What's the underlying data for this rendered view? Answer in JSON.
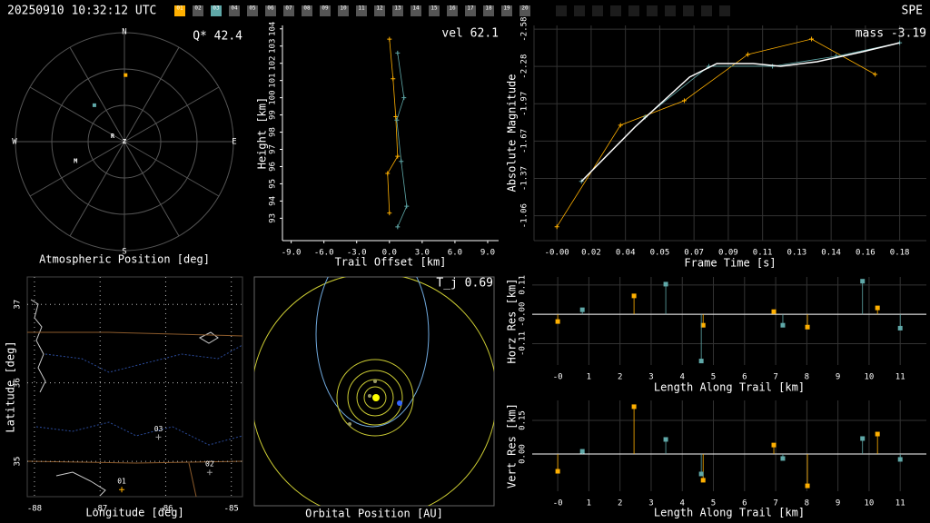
{
  "header": {
    "timestamp": "20250910 10:32:12 UTC",
    "network": "SPE",
    "stations": [
      {
        "label": "01",
        "color": "#ffb000"
      },
      {
        "label": "02",
        "color": "#555555"
      },
      {
        "label": "03",
        "color": "#5fa8a8"
      },
      {
        "label": "04",
        "color": "#555555"
      },
      {
        "label": "05",
        "color": "#555555"
      },
      {
        "label": "06",
        "color": "#555555"
      },
      {
        "label": "07",
        "color": "#555555"
      },
      {
        "label": "08",
        "color": "#555555"
      },
      {
        "label": "09",
        "color": "#555555"
      },
      {
        "label": "10",
        "color": "#555555"
      },
      {
        "label": "11",
        "color": "#555555"
      },
      {
        "label": "12",
        "color": "#555555"
      },
      {
        "label": "13",
        "color": "#555555"
      },
      {
        "label": "14",
        "color": "#555555"
      },
      {
        "label": "15",
        "color": "#555555"
      },
      {
        "label": "16",
        "color": "#555555"
      },
      {
        "label": "17",
        "color": "#555555"
      },
      {
        "label": "18",
        "color": "#555555"
      },
      {
        "label": "19",
        "color": "#555555"
      },
      {
        "label": "20",
        "color": "#555555"
      }
    ]
  },
  "chart_data": [
    {
      "type": "polar",
      "title": "Atmospheric Position [deg]",
      "annotation": "Q* 42.4",
      "directions": [
        "N",
        "E",
        "S",
        "W"
      ],
      "markers": [
        {
          "label": "R",
          "az": 295,
          "zen": 10.8
        },
        {
          "label": "M",
          "az": 248,
          "zen": 43.5
        },
        {
          "label": "Z",
          "az": 0,
          "zen": 0
        }
      ],
      "series": [
        {
          "color": "#ffb000",
          "az": [
            1
          ],
          "zen": [
            55
          ]
        },
        {
          "color": "#5fa8a8",
          "az": [
            320.5
          ],
          "zen": [
            39
          ]
        }
      ]
    },
    {
      "type": "line",
      "xlabel": "Trail Offset [km]",
      "ylabel": "Height [km]",
      "annotation": "vel 62.1",
      "grid": false,
      "xlim": [
        -9.8,
        10
      ],
      "ylim": [
        91.7,
        104.2
      ],
      "xticks": [
        {
          "value": -9,
          "label": "-9.0"
        },
        {
          "value": -6,
          "label": "-6.0"
        },
        {
          "value": -3,
          "label": "-3.0"
        },
        {
          "value": 0,
          "label": "0.0"
        },
        {
          "value": 3,
          "label": "3.0"
        },
        {
          "value": 6,
          "label": "6.0"
        },
        {
          "value": 9,
          "label": "9.0"
        }
      ],
      "yticks": [
        93,
        94,
        95,
        96,
        97,
        98,
        99,
        100,
        101,
        102,
        103,
        104
      ],
      "series": [
        {
          "color": "#ffb000",
          "marker": "+",
          "x": [
            0,
            0.33,
            0.58,
            0.75,
            -0.17,
            0
          ],
          "values": [
            103.4,
            101.1,
            98.9,
            96.6,
            95.6,
            93.3
          ]
        },
        {
          "color": "#5fa8a8",
          "marker": "+",
          "x": [
            0.75,
            1.33,
            0.67,
            1.08,
            1.58,
            0.75
          ],
          "values": [
            102.6,
            100.0,
            98.7,
            96.3,
            93.7,
            92.5
          ]
        }
      ]
    },
    {
      "type": "line",
      "xlabel": "Frame Time [s]",
      "ylabel": "Absolute Magnitude",
      "annotation": "mass -3.19",
      "grid": true,
      "xlim": [
        -0.012,
        0.194
      ],
      "ylim": [
        -0.86,
        -2.61
      ],
      "xticks": [
        {
          "value": 0,
          "label": "-0.00"
        },
        {
          "value": 0.018,
          "label": "0.02"
        },
        {
          "value": 0.036,
          "label": "0.04"
        },
        {
          "value": 0.054,
          "label": "0.05"
        },
        {
          "value": 0.072,
          "label": "0.07"
        },
        {
          "value": 0.09,
          "label": "0.09"
        },
        {
          "value": 0.108,
          "label": "0.11"
        },
        {
          "value": 0.126,
          "label": "0.13"
        },
        {
          "value": 0.144,
          "label": "0.14"
        },
        {
          "value": 0.162,
          "label": "0.16"
        },
        0.18
      ],
      "yticks": [
        -2.58,
        {
          "value": -2.2764,
          "label": "-2.28"
        },
        {
          "value": -1.9728,
          "label": "-1.97"
        },
        {
          "value": -1.6692,
          "label": "-1.67"
        },
        {
          "value": -1.3656,
          "label": "-1.37"
        },
        {
          "value": -1.062,
          "label": "-1.06"
        }
      ],
      "series": [
        {
          "color": "#ffb000",
          "marker": "+",
          "x": [
            0,
            0.0334,
            0.0669,
            0.1003,
            0.1337,
            0.1671
          ],
          "values": [
            -0.973,
            -1.799,
            -1.998,
            -2.374,
            -2.499,
            -2.212
          ]
        },
        {
          "color": "#5fa8a8",
          "marker": "+",
          "x": [
            0.0129,
            0.0463,
            0.0798,
            0.1132,
            0.1466,
            0.18
          ],
          "values": [
            -1.342,
            -1.865,
            -2.278,
            -2.278,
            -2.359,
            -2.469
          ]
        },
        {
          "color": "#ffffff",
          "marker": "none",
          "x": [
            0.0129,
            0.041,
            0.0697,
            0.084,
            0.1031,
            0.1175,
            0.1366,
            0.1605,
            0.18
          ],
          "values": [
            -1.342,
            -1.784,
            -2.19,
            -2.3,
            -2.3,
            -2.278,
            -2.315,
            -2.396,
            -2.469
          ]
        }
      ]
    },
    {
      "type": "stem",
      "xlabel": "Length Along Trail [km]",
      "ylabel": "Horz Res [km]",
      "grid": true,
      "xlim": [
        -0.82,
        11.84
      ],
      "ylim": [
        -0.19,
        0.14
      ],
      "xticks": [
        {
          "value": 0,
          "label": "-0"
        },
        1,
        2,
        3,
        4,
        5,
        6,
        7,
        8,
        9,
        10,
        11
      ],
      "yticks": [
        0.11,
        {
          "value": 0,
          "label": "-0.00"
        },
        -0.11
      ],
      "series": [
        {
          "color": "#ffb000",
          "x": [
            0,
            2.45,
            4.67,
            6.94,
            8.02,
            10.27
          ],
          "values": [
            -0.027,
            0.069,
            -0.041,
            0.01,
            -0.048,
            0.024
          ]
        },
        {
          "color": "#5fa8a8",
          "x": [
            0.79,
            3.47,
            4.61,
            7.23,
            9.79,
            11.0
          ],
          "values": [
            0.017,
            0.113,
            -0.175,
            -0.041,
            0.124,
            -0.052
          ]
        }
      ]
    },
    {
      "type": "stem",
      "xlabel": "Length Along Trail [km]",
      "ylabel": "Vert Res [km]",
      "grid": true,
      "xlim": [
        -0.82,
        11.84
      ],
      "ylim": [
        -0.166,
        0.239
      ],
      "xticks": [
        {
          "value": 0,
          "label": "-0"
        },
        1,
        2,
        3,
        4,
        5,
        6,
        7,
        8,
        9,
        10,
        11
      ],
      "yticks": [
        0.15,
        {
          "value": 0,
          "label": "0.00"
        }
      ],
      "series": [
        {
          "color": "#ffb000",
          "x": [
            0,
            2.45,
            4.67,
            6.94,
            8.02,
            10.27
          ],
          "values": [
            -0.077,
            0.211,
            -0.117,
            0.04,
            -0.142,
            0.089
          ]
        },
        {
          "color": "#5fa8a8",
          "x": [
            0.79,
            3.47,
            4.61,
            7.23,
            9.79,
            11.0
          ],
          "values": [
            0.012,
            0.065,
            -0.089,
            -0.02,
            0.069,
            -0.024
          ]
        }
      ]
    },
    {
      "type": "map",
      "xlabel": "Longitude [deg]",
      "ylabel": "Latitude [deg]",
      "grid": true,
      "xlim": [
        -88.11,
        -84.83
      ],
      "ylim": [
        34.55,
        37.35
      ],
      "xticks": [
        -88,
        -87,
        -86,
        -85
      ],
      "yticks": [
        35,
        36,
        37
      ],
      "stations": [
        {
          "label": "01",
          "lon": -86.67,
          "lat": 34.64,
          "color": "#ffb000"
        },
        {
          "label": "02",
          "lon": -85.33,
          "lat": 34.86,
          "color": "#999999"
        },
        {
          "label": "03",
          "lon": -86.11,
          "lat": 35.31,
          "color": "#999999"
        }
      ]
    },
    {
      "type": "orbit",
      "title": "Orbital Position [AU]",
      "annotation": "T_j 0.69"
    }
  ]
}
